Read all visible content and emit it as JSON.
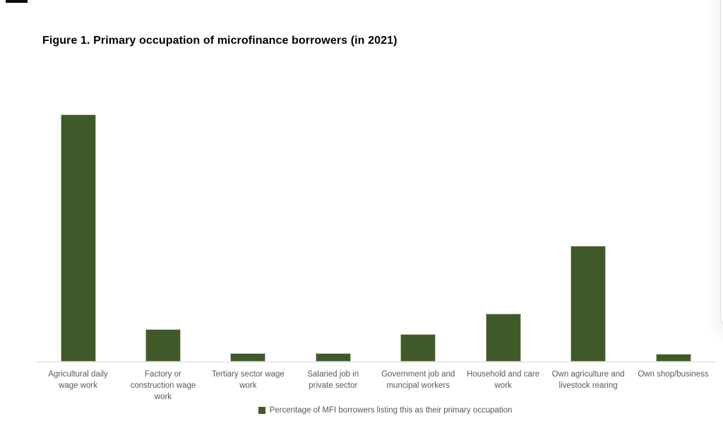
{
  "figure": {
    "title": "Figure 1. Primary occupation of microfinance borrowers (in 2021)"
  },
  "chart_data": {
    "type": "bar",
    "title": "Figure 1. Primary occupation of microfinance borrowers (in 2021)",
    "categories": [
      "Agricultural daily wage work",
      "Factory or construction wage work",
      "Tertiary sector wage work",
      "Salaried job in private sector",
      "Government job and muncipal workers",
      "Household and care work",
      "Own agriculture and livestock rearing",
      "Own shop/business"
    ],
    "values": [
      50,
      6.5,
      1.7,
      1.7,
      5.6,
      9.7,
      23.4,
      1.6
    ],
    "unit": "percent of borrowers (estimated; no value axis shown)",
    "ylim": [
      0,
      52
    ],
    "grid": false,
    "value_axis_visible": false,
    "legend": {
      "position": "bottom",
      "label": "Percentage of MFI borrowers listing this as their primary occupation"
    },
    "colors": {
      "bar_fill": "#3f5a28",
      "bar_border": "#bfc7b0",
      "axis_line": "#d9d9d9",
      "axis_label_text": "#595959",
      "title_text": "#000000"
    }
  }
}
